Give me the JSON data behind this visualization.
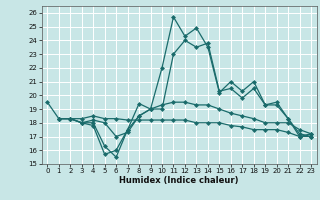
{
  "background_color": "#c8e6e6",
  "grid_color": "#ffffff",
  "line_color": "#1a6b6b",
  "xlabel": "Humidex (Indice chaleur)",
  "xlim": [
    -0.5,
    23.5
  ],
  "ylim": [
    15,
    26.5
  ],
  "xticks": [
    0,
    1,
    2,
    3,
    4,
    5,
    6,
    7,
    8,
    9,
    10,
    11,
    12,
    13,
    14,
    15,
    16,
    17,
    18,
    19,
    20,
    21,
    22,
    23
  ],
  "yticks": [
    15,
    16,
    17,
    18,
    19,
    20,
    21,
    22,
    23,
    24,
    25,
    26
  ],
  "lines": [
    {
      "x": [
        0,
        1,
        2,
        3,
        4,
        5,
        6,
        7,
        8,
        9,
        10,
        11,
        12,
        13,
        14,
        15,
        16,
        17,
        18,
        19,
        20,
        21,
        22,
        23
      ],
      "y": [
        19.5,
        18.3,
        18.3,
        18.0,
        17.8,
        15.7,
        16.0,
        17.5,
        19.4,
        19.0,
        22.0,
        25.7,
        24.3,
        24.9,
        23.5,
        20.2,
        21.0,
        20.3,
        21.0,
        19.3,
        19.3,
        18.3,
        17.0,
        17.2
      ],
      "marker": "D",
      "markersize": 2.0,
      "linewidth": 0.9
    },
    {
      "x": [
        1,
        2,
        3,
        4,
        5,
        6,
        7,
        8,
        9,
        10,
        11,
        12,
        13,
        14,
        15,
        16,
        17,
        18,
        19,
        20,
        21,
        22,
        23
      ],
      "y": [
        18.3,
        18.3,
        18.0,
        18.0,
        16.3,
        15.5,
        17.5,
        18.5,
        19.0,
        19.0,
        23.0,
        24.0,
        23.5,
        23.8,
        20.3,
        20.5,
        19.8,
        20.5,
        19.3,
        19.5,
        18.3,
        17.2,
        17.0
      ],
      "marker": "D",
      "markersize": 2.0,
      "linewidth": 0.9
    },
    {
      "x": [
        1,
        2,
        3,
        4,
        5,
        6,
        7,
        8,
        9,
        10,
        11,
        12,
        13,
        14,
        15,
        16,
        17,
        18,
        19,
        20,
        21,
        22,
        23
      ],
      "y": [
        18.3,
        18.3,
        18.0,
        18.2,
        18.0,
        17.0,
        17.3,
        18.5,
        19.0,
        19.3,
        19.5,
        19.5,
        19.3,
        19.3,
        19.0,
        18.7,
        18.5,
        18.3,
        18.0,
        18.0,
        18.0,
        17.5,
        17.2
      ],
      "marker": "D",
      "markersize": 2.0,
      "linewidth": 0.9
    },
    {
      "x": [
        1,
        2,
        3,
        4,
        5,
        6,
        7,
        8,
        9,
        10,
        11,
        12,
        13,
        14,
        15,
        16,
        17,
        18,
        19,
        20,
        21,
        22,
        23
      ],
      "y": [
        18.3,
        18.3,
        18.3,
        18.5,
        18.3,
        18.3,
        18.2,
        18.2,
        18.2,
        18.2,
        18.2,
        18.2,
        18.0,
        18.0,
        18.0,
        17.8,
        17.7,
        17.5,
        17.5,
        17.5,
        17.3,
        17.0,
        17.0
      ],
      "marker": "D",
      "markersize": 2.0,
      "linewidth": 0.9
    }
  ],
  "xlabel_fontsize": 6,
  "tick_fontsize": 5
}
